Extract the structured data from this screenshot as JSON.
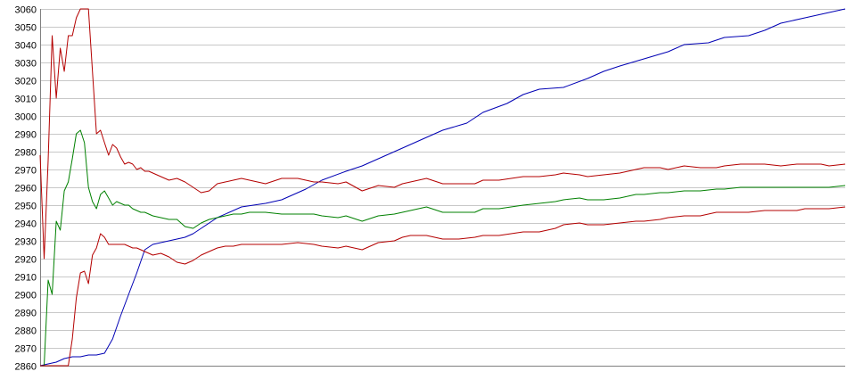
{
  "chart_data": {
    "type": "line",
    "title": "",
    "xlabel": "",
    "ylabel": "",
    "ylim": [
      2860,
      3060
    ],
    "xlim": [
      0,
      100
    ],
    "grid": true,
    "y_ticks": [
      "3060",
      "3050",
      "3040",
      "3030",
      "3020",
      "3010",
      "3000",
      "2990",
      "2980",
      "2970",
      "2960",
      "2950",
      "2940",
      "2930",
      "2920",
      "2910",
      "2900",
      "2890",
      "2880",
      "2870",
      "2860"
    ],
    "series": [
      {
        "color": "#0000b4",
        "x": [
          0,
          2,
          3,
          4,
          5,
          6,
          7,
          8,
          9,
          10,
          11,
          12,
          13,
          14,
          15,
          16,
          17,
          18,
          19,
          20,
          22,
          25,
          28,
          30,
          33,
          35,
          38,
          40,
          43,
          45,
          48,
          50,
          53,
          55,
          58,
          60,
          62,
          65,
          68,
          70,
          72,
          75,
          78,
          80,
          83,
          85,
          88,
          90,
          92,
          95,
          98,
          100
        ],
        "y": [
          2860,
          2862,
          2864,
          2865,
          2865,
          2866,
          2866,
          2867,
          2875,
          2888,
          2900,
          2912,
          2925,
          2928,
          2929,
          2930,
          2931,
          2932,
          2934,
          2937,
          2943,
          2949,
          2951,
          2953,
          2959,
          2964,
          2969,
          2972,
          2978,
          2982,
          2988,
          2992,
          2996,
          3002,
          3007,
          3012,
          3015,
          3016,
          3021,
          3025,
          3028,
          3032,
          3036,
          3040,
          3041,
          3044,
          3045,
          3048,
          3052,
          3055,
          3058,
          3060
        ]
      },
      {
        "color": "#b40000",
        "x": [
          0,
          0.5,
          1,
          1.5,
          2,
          2.5,
          3,
          3.5,
          4,
          4.5,
          5,
          5.5,
          6,
          6.5,
          7,
          7.5,
          8,
          8.5,
          9,
          9.5,
          10,
          10.5,
          11,
          11.5,
          12,
          12.5,
          13,
          13.5,
          14,
          15,
          16,
          17,
          18,
          19,
          20,
          21,
          22,
          23,
          24,
          25,
          26,
          27,
          28,
          30,
          32,
          34,
          35,
          37,
          38,
          40,
          42,
          44,
          45,
          46,
          47,
          48,
          50,
          52,
          54,
          55,
          57,
          60,
          62,
          64,
          65,
          67,
          68,
          70,
          72,
          74,
          75,
          77,
          78,
          80,
          82,
          84,
          85,
          87,
          88,
          90,
          92,
          94,
          95,
          97,
          98,
          100
        ],
        "y": [
          2978,
          2920,
          2975,
          3045,
          3010,
          3038,
          3025,
          3045,
          3045,
          3055,
          3060,
          3060,
          3060,
          3025,
          2990,
          2992,
          2985,
          2978,
          2984,
          2982,
          2977,
          2973,
          2974,
          2973,
          2970,
          2971,
          2969,
          2969,
          2968,
          2966,
          2964,
          2965,
          2963,
          2960,
          2957,
          2958,
          2962,
          2963,
          2964,
          2965,
          2964,
          2963,
          2962,
          2965,
          2965,
          2963,
          2963,
          2962,
          2963,
          2958,
          2961,
          2960,
          2962,
          2963,
          2964,
          2965,
          2962,
          2962,
          2962,
          2964,
          2964,
          2966,
          2966,
          2967,
          2968,
          2967,
          2966,
          2967,
          2968,
          2970,
          2971,
          2971,
          2970,
          2972,
          2971,
          2971,
          2972,
          2973,
          2973,
          2973,
          2972,
          2973,
          2973,
          2973,
          2972,
          2973
        ]
      },
      {
        "color": "#008000",
        "x": [
          0,
          0.5,
          1,
          1.5,
          2,
          2.5,
          3,
          3.5,
          4,
          4.5,
          5,
          5.5,
          6,
          6.5,
          7,
          7.5,
          8,
          8.5,
          9,
          9.5,
          10,
          10.5,
          11,
          11.5,
          12,
          12.5,
          13,
          13.5,
          14,
          15,
          16,
          17,
          18,
          19,
          20,
          21,
          22,
          23,
          24,
          25,
          26,
          27,
          28,
          30,
          32,
          34,
          35,
          37,
          38,
          40,
          42,
          44,
          45,
          46,
          47,
          48,
          50,
          52,
          54,
          55,
          57,
          60,
          62,
          64,
          65,
          67,
          68,
          70,
          72,
          74,
          75,
          77,
          78,
          80,
          82,
          84,
          85,
          87,
          88,
          90,
          92,
          94,
          95,
          97,
          98,
          100
        ],
        "y": [
          2860,
          2860,
          2908,
          2900,
          2941,
          2936,
          2958,
          2963,
          2976,
          2990,
          2992,
          2985,
          2960,
          2952,
          2948,
          2956,
          2958,
          2954,
          2950,
          2952,
          2951,
          2950,
          2950,
          2948,
          2947,
          2946,
          2946,
          2945,
          2944,
          2943,
          2942,
          2942,
          2938,
          2937,
          2940,
          2942,
          2943,
          2944,
          2945,
          2945,
          2946,
          2946,
          2946,
          2945,
          2945,
          2945,
          2944,
          2943,
          2944,
          2941,
          2944,
          2945,
          2946,
          2947,
          2948,
          2949,
          2946,
          2946,
          2946,
          2948,
          2948,
          2950,
          2951,
          2952,
          2953,
          2954,
          2953,
          2953,
          2954,
          2956,
          2956,
          2957,
          2957,
          2958,
          2958,
          2959,
          2959,
          2960,
          2960,
          2960,
          2960,
          2960,
          2960,
          2960,
          2960,
          2961
        ]
      },
      {
        "color": "#b40000",
        "x": [
          0,
          0.5,
          1,
          1.5,
          2,
          2.5,
          3,
          3.5,
          4,
          4.5,
          5,
          5.5,
          6,
          6.5,
          7,
          7.5,
          8,
          8.5,
          9,
          9.5,
          10,
          10.5,
          11,
          11.5,
          12,
          12.5,
          13,
          13.5,
          14,
          15,
          16,
          17,
          18,
          19,
          20,
          21,
          22,
          23,
          24,
          25,
          26,
          27,
          28,
          30,
          32,
          34,
          35,
          37,
          38,
          40,
          42,
          44,
          45,
          46,
          47,
          48,
          50,
          52,
          54,
          55,
          57,
          60,
          62,
          64,
          65,
          67,
          68,
          70,
          72,
          74,
          75,
          77,
          78,
          80,
          82,
          84,
          85,
          87,
          88,
          90,
          92,
          94,
          95,
          97,
          98,
          100
        ],
        "y": [
          2860,
          2860,
          2860,
          2860,
          2860,
          2860,
          2860,
          2860,
          2875,
          2898,
          2912,
          2913,
          2906,
          2922,
          2926,
          2934,
          2932,
          2928,
          2928,
          2928,
          2928,
          2928,
          2927,
          2926,
          2926,
          2925,
          2924,
          2923,
          2922,
          2923,
          2921,
          2918,
          2917,
          2919,
          2922,
          2924,
          2926,
          2927,
          2927,
          2928,
          2928,
          2928,
          2928,
          2928,
          2929,
          2928,
          2927,
          2926,
          2927,
          2925,
          2929,
          2930,
          2932,
          2933,
          2933,
          2933,
          2931,
          2931,
          2932,
          2933,
          2933,
          2935,
          2935,
          2937,
          2939,
          2940,
          2939,
          2939,
          2940,
          2941,
          2941,
          2942,
          2943,
          2944,
          2944,
          2946,
          2946,
          2946,
          2946,
          2947,
          2947,
          2947,
          2948,
          2948,
          2948,
          2949
        ]
      }
    ]
  }
}
